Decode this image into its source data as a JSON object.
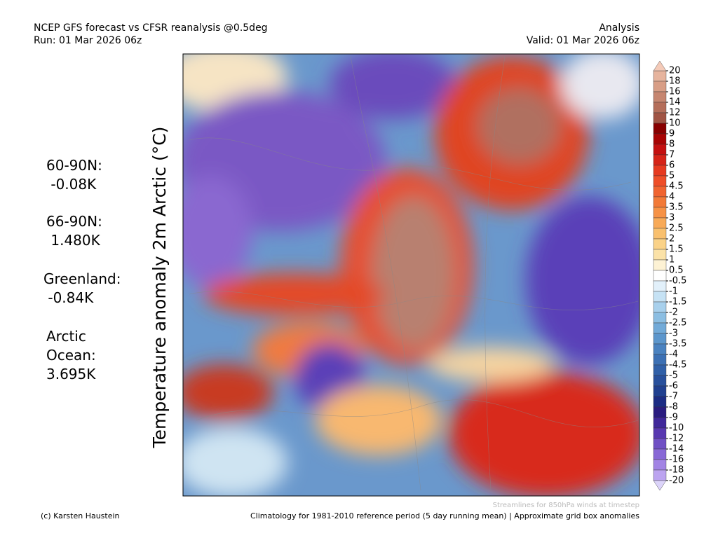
{
  "header": {
    "left": [
      "NCEP GFS forecast vs CFSR reanalysis @0.5deg",
      "Run: 01 Mar 2026 06z"
    ],
    "right": [
      "Analysis",
      "Valid: 01 Mar 2026 06z"
    ]
  },
  "stats": [
    [
      "60-90N:",
      " -0.08K"
    ],
    [
      "66-90N:",
      " 1.480K"
    ],
    [
      "Greenland:",
      " -0.84K"
    ],
    [
      "Arctic",
      "Ocean:",
      "3.695K"
    ]
  ],
  "y_label": "Temperature anomaly 2m Arctic (°C)",
  "colorbar": {
    "labels": [
      20,
      18,
      16,
      14,
      12,
      10,
      9,
      8,
      7,
      6,
      5,
      4.5,
      4,
      3.5,
      3,
      2.5,
      2,
      1.5,
      1,
      0.5,
      -0.5,
      -1,
      -1.5,
      -2,
      -2.5,
      -3,
      -3.5,
      -4,
      -4.5,
      -5,
      -6,
      -7,
      -8,
      -9,
      -10,
      -12,
      -14,
      -16,
      -18,
      -20
    ],
    "colors": [
      "#e6b49e",
      "#d89e86",
      "#c68670",
      "#b46e5a",
      "#a05444",
      "#880000",
      "#a80404",
      "#c41010",
      "#d62418",
      "#e63a20",
      "#ee4e28",
      "#f06430",
      "#f27a38",
      "#f69246",
      "#f8aa58",
      "#f9c06e",
      "#fad288",
      "#fbe2a8",
      "#fdf2d4",
      "#ffffff",
      "#e2f0fa",
      "#c6e2f4",
      "#a8d0ec",
      "#8cbee2",
      "#72aad8",
      "#5c96cc",
      "#4a82c0",
      "#3c70b4",
      "#3060a8",
      "#28509c",
      "#204090",
      "#1c2c84",
      "#2a1c80",
      "#40289a",
      "#5838b0",
      "#7050c4",
      "#8868d6",
      "#a284e4",
      "#bca4f0"
    ],
    "top_color": "#f4cab8",
    "bottom_color": "#dcd4fa"
  },
  "footer": {
    "credit": "(c) Karsten Haustein",
    "note": "Climatology for 1981-2010 reference period (5 day running mean) | Approximate grid box anomalies",
    "streamlines": "Streamlines for 850hPa winds at timestep"
  }
}
